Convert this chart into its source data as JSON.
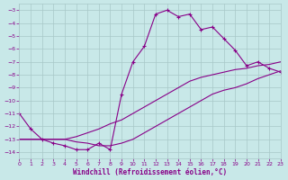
{
  "xlabel": "Windchill (Refroidissement éolien,°C)",
  "xlim": [
    0,
    23
  ],
  "ylim": [
    -14.5,
    -2.5
  ],
  "yticks": [
    -14,
    -13,
    -12,
    -11,
    -10,
    -9,
    -8,
    -7,
    -6,
    -5,
    -4,
    -3
  ],
  "xticks": [
    0,
    1,
    2,
    3,
    4,
    5,
    6,
    7,
    8,
    9,
    10,
    11,
    12,
    13,
    14,
    15,
    16,
    17,
    18,
    19,
    20,
    21,
    22,
    23
  ],
  "bg_color": "#c8e8e8",
  "grid_color": "#a8c8c8",
  "line_color": "#880088",
  "line1_x": [
    0,
    1,
    2,
    3,
    4,
    5,
    6,
    7,
    8,
    9,
    10,
    11,
    12,
    13,
    14,
    15,
    16,
    17,
    18,
    19,
    20,
    21,
    22,
    23
  ],
  "line1_y": [
    -11.0,
    -12.2,
    -13.0,
    -13.3,
    -13.5,
    -13.8,
    -13.8,
    -13.3,
    -13.8,
    -9.5,
    -7.0,
    -5.8,
    -3.3,
    -3.0,
    -3.5,
    -3.3,
    -4.5,
    -4.3,
    -5.2,
    -6.1,
    -7.3,
    -7.0,
    -7.5,
    -7.8
  ],
  "line2_x": [
    0,
    1,
    2,
    3,
    4,
    5,
    6,
    7,
    8,
    9,
    10,
    11,
    12,
    13,
    14,
    15,
    16,
    17,
    18,
    19,
    20,
    21,
    22,
    23
  ],
  "line2_y": [
    -13.0,
    -13.0,
    -13.0,
    -13.0,
    -13.0,
    -12.8,
    -12.5,
    -12.2,
    -11.8,
    -11.5,
    -11.0,
    -10.5,
    -10.0,
    -9.5,
    -9.0,
    -8.5,
    -8.2,
    -8.0,
    -7.8,
    -7.6,
    -7.5,
    -7.3,
    -7.2,
    -7.0
  ],
  "line3_x": [
    0,
    1,
    2,
    3,
    4,
    5,
    6,
    7,
    8,
    9,
    10,
    11,
    12,
    13,
    14,
    15,
    16,
    17,
    18,
    19,
    20,
    21,
    22,
    23
  ],
  "line3_y": [
    -13.0,
    -13.0,
    -13.0,
    -13.0,
    -13.0,
    -13.2,
    -13.3,
    -13.5,
    -13.5,
    -13.3,
    -13.0,
    -12.5,
    -12.0,
    -11.5,
    -11.0,
    -10.5,
    -10.0,
    -9.5,
    -9.2,
    -9.0,
    -8.7,
    -8.3,
    -8.0,
    -7.7
  ]
}
